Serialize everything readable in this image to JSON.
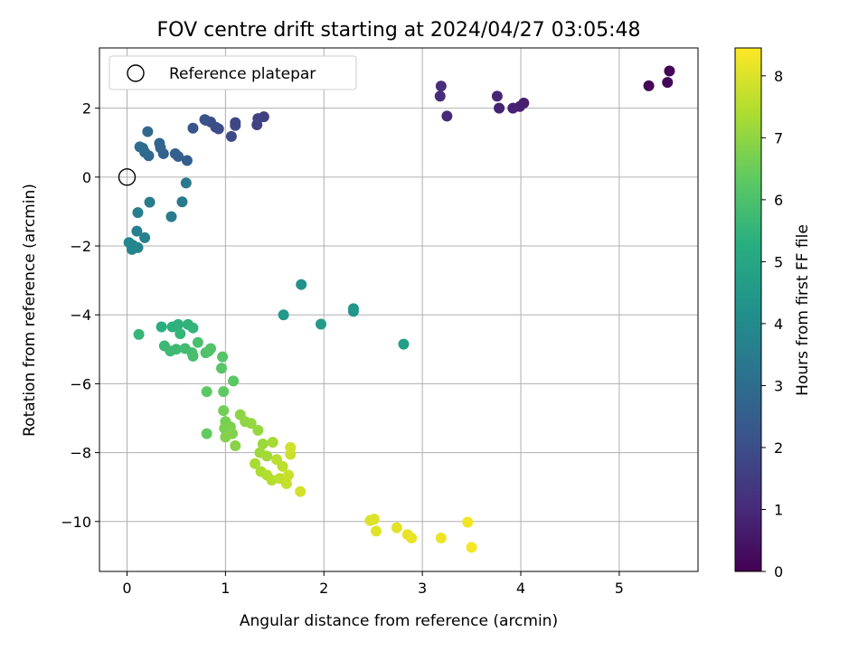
{
  "chart_data": {
    "type": "scatter",
    "title": "FOV centre drift starting at 2024/04/27 03:05:48",
    "xlabel": "Angular distance from reference (arcmin)",
    "ylabel": "Rotation from reference (arcmin)",
    "xlim": [
      -0.28,
      5.8
    ],
    "ylim": [
      -11.45,
      3.75
    ],
    "xticks": [
      0,
      1,
      2,
      3,
      4,
      5
    ],
    "yticks": [
      2,
      0,
      -2,
      -4,
      -6,
      -8,
      -10
    ],
    "grid": true,
    "legend": {
      "position": "top-left",
      "entries": [
        "Reference platepar"
      ]
    },
    "reference_point": {
      "x": 0,
      "y": 0,
      "label": "Reference platepar"
    },
    "colorbar": {
      "label": "Hours from first FF file",
      "colormap": "viridis",
      "range": [
        0,
        8.45
      ],
      "ticks": [
        0,
        1,
        2,
        3,
        4,
        5,
        6,
        7,
        8
      ]
    },
    "points": [
      {
        "x": 5.51,
        "y": 3.08,
        "c": 0.05
      },
      {
        "x": 5.3,
        "y": 2.65,
        "c": 0.1
      },
      {
        "x": 5.49,
        "y": 2.75,
        "c": 0.15
      },
      {
        "x": 4.03,
        "y": 2.15,
        "c": 0.7
      },
      {
        "x": 3.99,
        "y": 2.05,
        "c": 0.75
      },
      {
        "x": 3.92,
        "y": 2.0,
        "c": 0.8
      },
      {
        "x": 3.78,
        "y": 2.0,
        "c": 0.85
      },
      {
        "x": 3.76,
        "y": 2.35,
        "c": 0.9
      },
      {
        "x": 3.25,
        "y": 1.77,
        "c": 1.0
      },
      {
        "x": 3.18,
        "y": 2.35,
        "c": 1.05
      },
      {
        "x": 3.19,
        "y": 2.64,
        "c": 1.1
      },
      {
        "x": 1.39,
        "y": 1.75,
        "c": 1.6
      },
      {
        "x": 1.33,
        "y": 1.7,
        "c": 1.65
      },
      {
        "x": 1.32,
        "y": 1.52,
        "c": 1.7
      },
      {
        "x": 1.1,
        "y": 1.58,
        "c": 1.75
      },
      {
        "x": 1.1,
        "y": 1.5,
        "c": 1.8
      },
      {
        "x": 1.06,
        "y": 1.18,
        "c": 1.85
      },
      {
        "x": 0.93,
        "y": 1.4,
        "c": 1.9
      },
      {
        "x": 0.9,
        "y": 1.45,
        "c": 1.95
      },
      {
        "x": 0.85,
        "y": 1.6,
        "c": 2.0
      },
      {
        "x": 0.8,
        "y": 1.65,
        "c": 2.05
      },
      {
        "x": 0.79,
        "y": 1.67,
        "c": 2.1
      },
      {
        "x": 0.67,
        "y": 1.42,
        "c": 2.2
      },
      {
        "x": 0.61,
        "y": 0.48,
        "c": 2.5
      },
      {
        "x": 0.52,
        "y": 0.6,
        "c": 2.55
      },
      {
        "x": 0.49,
        "y": 0.68,
        "c": 2.6
      },
      {
        "x": 0.37,
        "y": 0.68,
        "c": 2.65
      },
      {
        "x": 0.34,
        "y": 0.85,
        "c": 2.7
      },
      {
        "x": 0.33,
        "y": 0.98,
        "c": 2.75
      },
      {
        "x": 0.21,
        "y": 1.32,
        "c": 2.8
      },
      {
        "x": 0.22,
        "y": 0.62,
        "c": 2.85
      },
      {
        "x": 0.18,
        "y": 0.72,
        "c": 2.9
      },
      {
        "x": 0.16,
        "y": 0.84,
        "c": 2.95
      },
      {
        "x": 0.13,
        "y": 0.88,
        "c": 3.0
      },
      {
        "x": 0.6,
        "y": -0.17,
        "c": 3.4
      },
      {
        "x": 0.56,
        "y": -0.72,
        "c": 3.45
      },
      {
        "x": 0.45,
        "y": -1.15,
        "c": 3.5
      },
      {
        "x": 0.23,
        "y": -0.73,
        "c": 3.55
      },
      {
        "x": 0.11,
        "y": -1.03,
        "c": 3.6
      },
      {
        "x": 0.1,
        "y": -1.57,
        "c": 3.65
      },
      {
        "x": 0.18,
        "y": -1.76,
        "c": 3.7
      },
      {
        "x": 0.11,
        "y": -2.05,
        "c": 3.75
      },
      {
        "x": 0.05,
        "y": -2.1,
        "c": 3.8
      },
      {
        "x": 0.06,
        "y": -1.98,
        "c": 3.85
      },
      {
        "x": 0.02,
        "y": -1.9,
        "c": 3.9
      },
      {
        "x": 1.77,
        "y": -3.12,
        "c": 4.3
      },
      {
        "x": 2.3,
        "y": -3.82,
        "c": 4.35
      },
      {
        "x": 2.3,
        "y": -3.9,
        "c": 4.4
      },
      {
        "x": 1.59,
        "y": -4.0,
        "c": 4.5
      },
      {
        "x": 1.97,
        "y": -4.27,
        "c": 4.6
      },
      {
        "x": 2.81,
        "y": -4.85,
        "c": 4.7
      },
      {
        "x": 0.35,
        "y": -4.35,
        "c": 5.3
      },
      {
        "x": 0.46,
        "y": -4.35,
        "c": 5.35
      },
      {
        "x": 0.52,
        "y": -4.28,
        "c": 5.4
      },
      {
        "x": 0.62,
        "y": -4.28,
        "c": 5.45
      },
      {
        "x": 0.67,
        "y": -4.38,
        "c": 5.5
      },
      {
        "x": 0.54,
        "y": -4.55,
        "c": 5.55
      },
      {
        "x": 0.12,
        "y": -4.57,
        "c": 5.6
      },
      {
        "x": 0.38,
        "y": -4.9,
        "c": 5.65
      },
      {
        "x": 0.44,
        "y": -5.05,
        "c": 5.7
      },
      {
        "x": 0.5,
        "y": -5.0,
        "c": 5.75
      },
      {
        "x": 0.59,
        "y": -4.98,
        "c": 5.8
      },
      {
        "x": 0.66,
        "y": -5.1,
        "c": 5.85
      },
      {
        "x": 0.67,
        "y": -5.2,
        "c": 5.9
      },
      {
        "x": 0.72,
        "y": -4.8,
        "c": 5.95
      },
      {
        "x": 0.8,
        "y": -5.1,
        "c": 6.0
      },
      {
        "x": 0.83,
        "y": -5.05,
        "c": 6.05
      },
      {
        "x": 0.85,
        "y": -4.98,
        "c": 6.1
      },
      {
        "x": 0.97,
        "y": -5.22,
        "c": 6.15
      },
      {
        "x": 0.96,
        "y": -5.55,
        "c": 6.2
      },
      {
        "x": 1.08,
        "y": -5.92,
        "c": 6.25
      },
      {
        "x": 0.81,
        "y": -6.23,
        "c": 6.3
      },
      {
        "x": 0.98,
        "y": -6.23,
        "c": 6.35
      },
      {
        "x": 0.81,
        "y": -7.45,
        "c": 6.4
      },
      {
        "x": 0.98,
        "y": -6.78,
        "c": 6.6
      },
      {
        "x": 1.0,
        "y": -7.1,
        "c": 6.65
      },
      {
        "x": 0.99,
        "y": -7.3,
        "c": 6.7
      },
      {
        "x": 1.05,
        "y": -7.25,
        "c": 6.75
      },
      {
        "x": 1.07,
        "y": -7.45,
        "c": 6.8
      },
      {
        "x": 1.0,
        "y": -7.55,
        "c": 6.85
      },
      {
        "x": 1.1,
        "y": -7.8,
        "c": 6.9
      },
      {
        "x": 1.15,
        "y": -6.9,
        "c": 6.95
      },
      {
        "x": 1.2,
        "y": -7.1,
        "c": 7.0
      },
      {
        "x": 1.26,
        "y": -7.15,
        "c": 7.05
      },
      {
        "x": 1.33,
        "y": -7.35,
        "c": 7.1
      },
      {
        "x": 1.38,
        "y": -7.75,
        "c": 7.15
      },
      {
        "x": 1.35,
        "y": -8.0,
        "c": 7.2
      },
      {
        "x": 1.42,
        "y": -8.1,
        "c": 7.25
      },
      {
        "x": 1.48,
        "y": -7.7,
        "c": 7.3
      },
      {
        "x": 1.3,
        "y": -8.32,
        "c": 7.35
      },
      {
        "x": 1.36,
        "y": -8.55,
        "c": 7.4
      },
      {
        "x": 1.42,
        "y": -8.65,
        "c": 7.45
      },
      {
        "x": 1.47,
        "y": -8.8,
        "c": 7.5
      },
      {
        "x": 1.52,
        "y": -8.2,
        "c": 7.55
      },
      {
        "x": 1.58,
        "y": -8.4,
        "c": 7.6
      },
      {
        "x": 1.55,
        "y": -8.75,
        "c": 7.65
      },
      {
        "x": 1.62,
        "y": -8.9,
        "c": 7.7
      },
      {
        "x": 1.64,
        "y": -8.65,
        "c": 7.75
      },
      {
        "x": 1.66,
        "y": -8.05,
        "c": 7.8
      },
      {
        "x": 1.66,
        "y": -7.85,
        "c": 7.85
      },
      {
        "x": 1.76,
        "y": -9.13,
        "c": 7.9
      },
      {
        "x": 2.47,
        "y": -9.97,
        "c": 8.0
      },
      {
        "x": 2.51,
        "y": -9.93,
        "c": 8.02
      },
      {
        "x": 2.53,
        "y": -10.28,
        "c": 8.05
      },
      {
        "x": 2.74,
        "y": -10.18,
        "c": 8.1
      },
      {
        "x": 2.85,
        "y": -10.38,
        "c": 8.15
      },
      {
        "x": 2.89,
        "y": -10.48,
        "c": 8.2
      },
      {
        "x": 3.19,
        "y": -10.48,
        "c": 8.25
      },
      {
        "x": 3.46,
        "y": -10.02,
        "c": 8.3
      },
      {
        "x": 3.5,
        "y": -10.75,
        "c": 8.35
      }
    ]
  }
}
